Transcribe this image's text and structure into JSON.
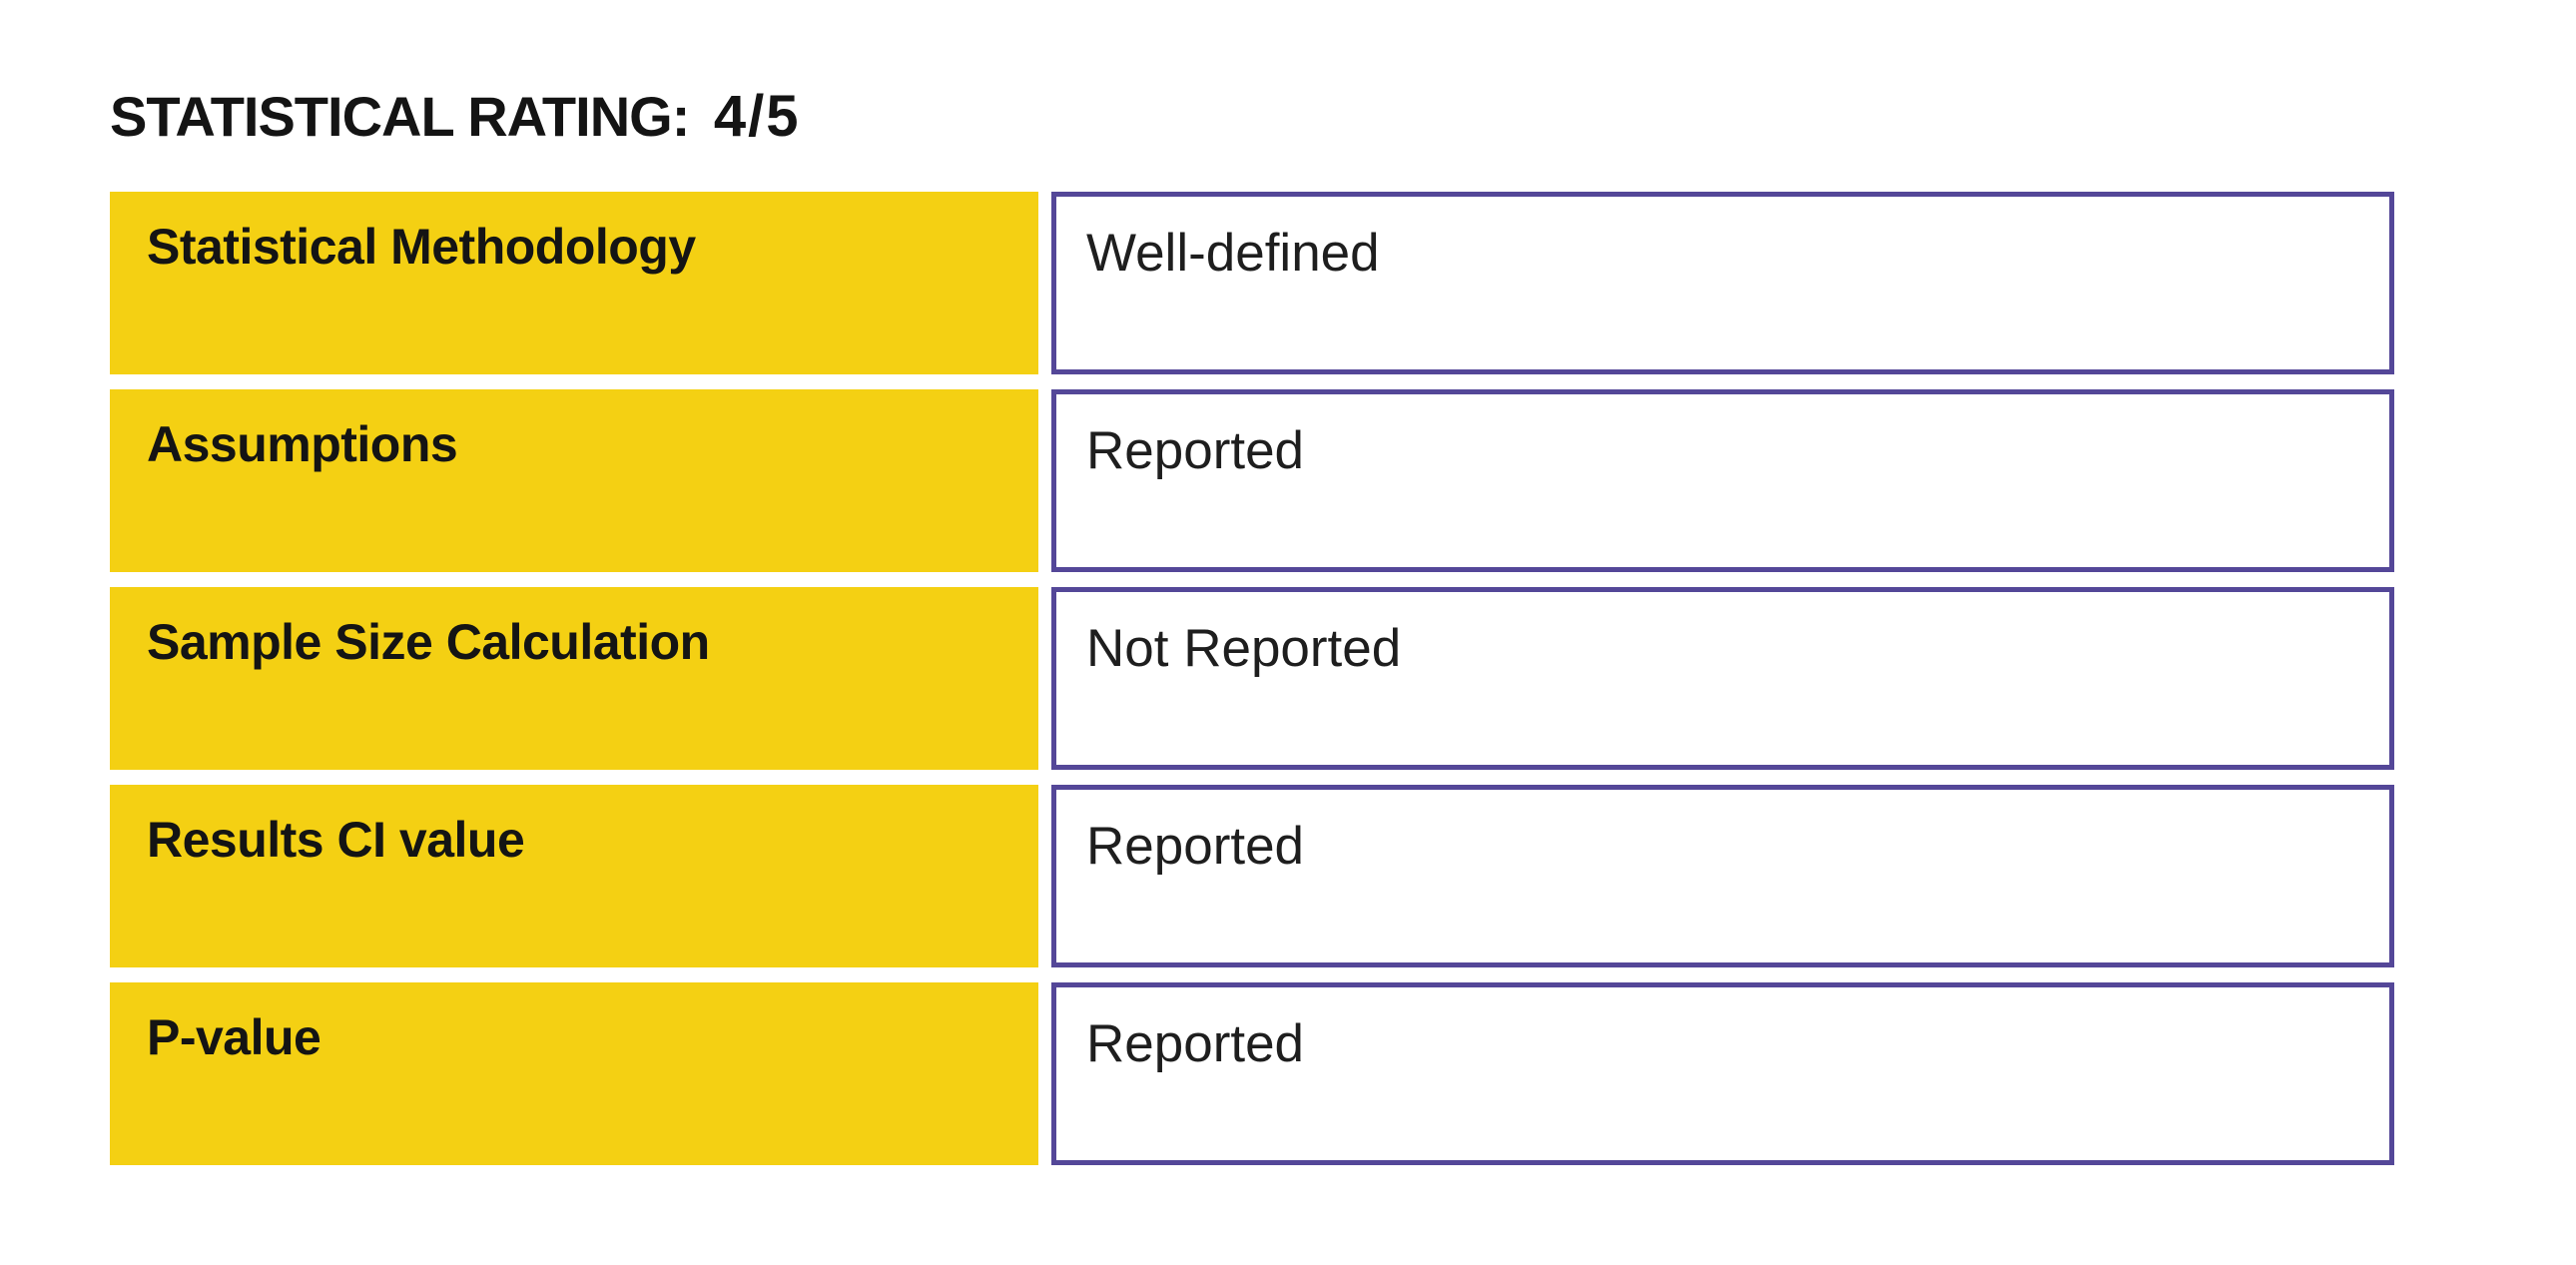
{
  "header": {
    "rating_label": "STATISTICAL RATING:",
    "rating_value": "4/5"
  },
  "table": {
    "rows": [
      {
        "label": "Statistical Methodology",
        "value": "Well-defined"
      },
      {
        "label": "Assumptions",
        "value": "Reported"
      },
      {
        "label": "Sample Size Calculation",
        "value": "Not Reported"
      },
      {
        "label": "Results CI value",
        "value": "Reported"
      },
      {
        "label": "P-value",
        "value": "Reported"
      }
    ]
  },
  "colors": {
    "label_background": "#f4d013",
    "value_border": "#544798",
    "text": "#141414"
  }
}
